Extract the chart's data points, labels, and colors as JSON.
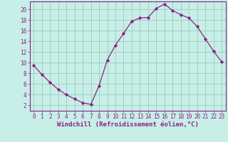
{
  "x": [
    0,
    1,
    2,
    3,
    4,
    5,
    6,
    7,
    8,
    9,
    10,
    11,
    12,
    13,
    14,
    15,
    16,
    17,
    18,
    19,
    20,
    21,
    22,
    23
  ],
  "y": [
    9.5,
    7.8,
    6.3,
    5.0,
    4.0,
    3.2,
    2.5,
    2.2,
    5.7,
    10.5,
    13.3,
    15.5,
    17.8,
    18.4,
    18.5,
    20.2,
    21.0,
    19.8,
    19.0,
    18.4,
    16.8,
    14.5,
    12.2,
    10.2
  ],
  "line_color": "#882288",
  "marker": "D",
  "marker_size": 2.2,
  "bg_color": "#c8eee8",
  "grid_color": "#99ccbb",
  "xlabel": "Windchill (Refroidissement éolien,°C)",
  "ylabel": "",
  "title": "",
  "xlim": [
    -0.5,
    23.5
  ],
  "ylim": [
    1.0,
    21.5
  ],
  "yticks": [
    2,
    4,
    6,
    8,
    10,
    12,
    14,
    16,
    18,
    20
  ],
  "xticks": [
    0,
    1,
    2,
    3,
    4,
    5,
    6,
    7,
    8,
    9,
    10,
    11,
    12,
    13,
    14,
    15,
    16,
    17,
    18,
    19,
    20,
    21,
    22,
    23
  ],
  "tick_color": "#882288",
  "label_fontsize": 6.5,
  "tick_fontsize": 5.5,
  "spine_color": "#882288"
}
